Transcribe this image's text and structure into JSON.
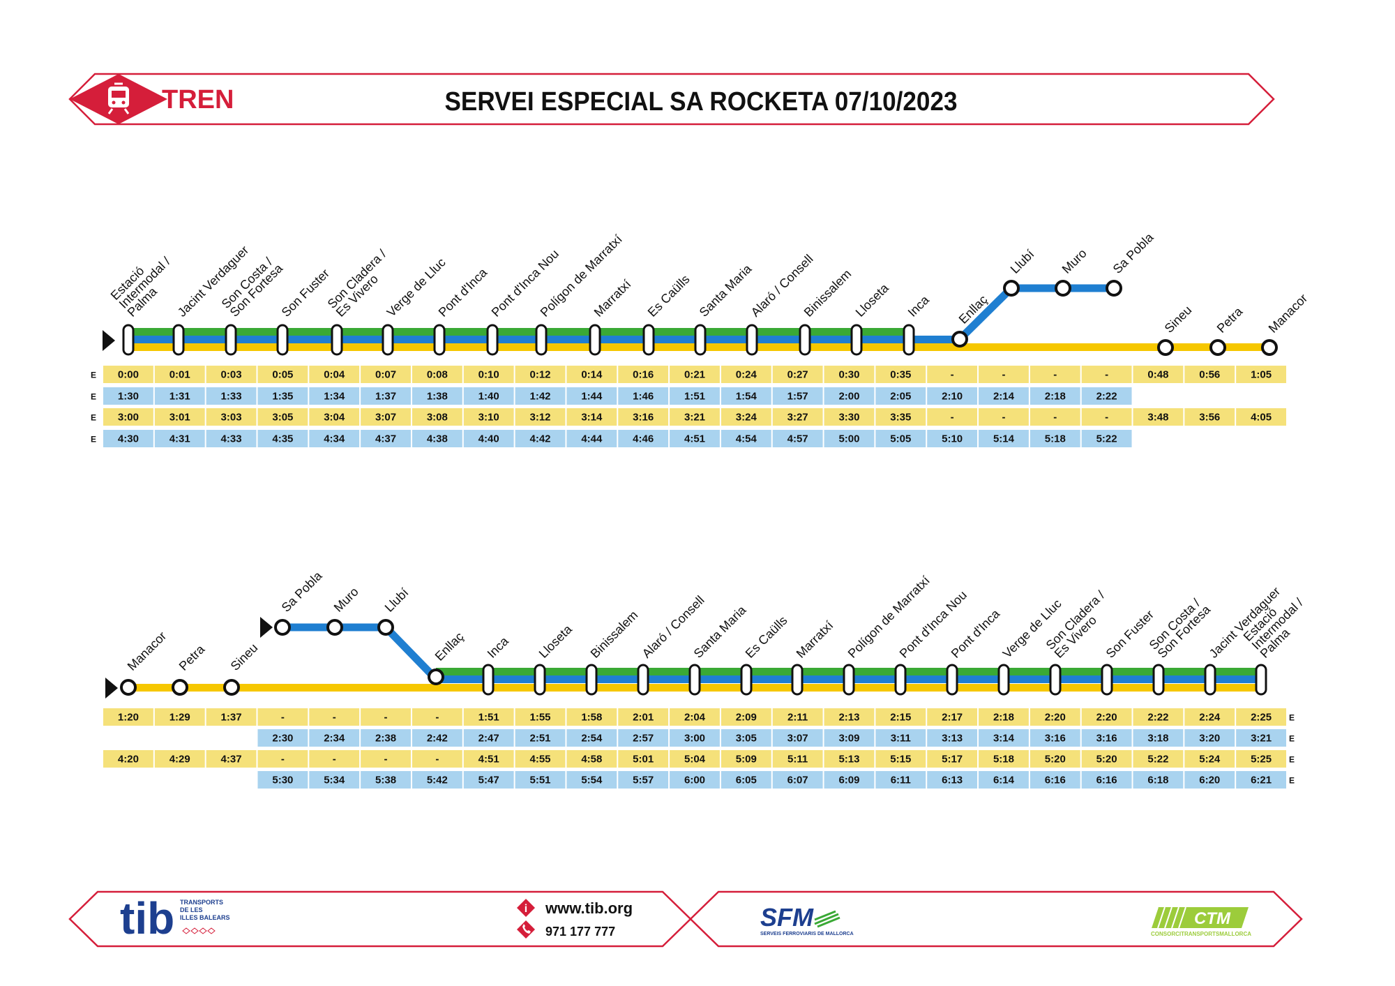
{
  "header": {
    "brand": "TREN",
    "title": "SERVEI ESPECIAL SA ROCKETA 07/10/2023"
  },
  "colors": {
    "accent_red": "#d51e3a",
    "yellow": "#f5e17a",
    "blue": "#a9d3ef",
    "line_green": "#3aa935",
    "line_blue": "#1f7fd1",
    "line_yellow": "#f6c700"
  },
  "service_marker": "E",
  "diagram1": {
    "stations": [
      "Estació\nIntermodal /\nPalma",
      "Jacint Verdaguer",
      "Son Costa /\nSon Fortesa",
      "Son Fuster",
      "Son Cladera /\nEs Vivero",
      "Verge de Lluc",
      "Pont d'Inca",
      "Pont d'Inca Nou",
      "Polígon de Marratxí",
      "Marratxí",
      "Es Caülls",
      "Santa Maria",
      "Alaró / Consell",
      "Binissalem",
      "Lloseta",
      "Inca",
      "Enllaç",
      "Llubí",
      "Muro",
      "Sa Pobla",
      "Sineu",
      "Petra",
      "Manacor"
    ],
    "rows": [
      {
        "fill": "yellow",
        "cells": [
          "0:00",
          "0:01",
          "0:03",
          "0:05",
          "0:04",
          "0:07",
          "0:08",
          "0:10",
          "0:12",
          "0:14",
          "0:16",
          "0:21",
          "0:24",
          "0:27",
          "0:30",
          "0:35",
          "-",
          "-",
          "-",
          "-",
          "0:48",
          "0:56",
          "1:05"
        ]
      },
      {
        "fill": "blue",
        "cells": [
          "1:30",
          "1:31",
          "1:33",
          "1:35",
          "1:34",
          "1:37",
          "1:38",
          "1:40",
          "1:42",
          "1:44",
          "1:46",
          "1:51",
          "1:54",
          "1:57",
          "2:00",
          "2:05",
          "2:10",
          "2:14",
          "2:18",
          "2:22"
        ]
      },
      {
        "fill": "yellow",
        "cells": [
          "3:00",
          "3:01",
          "3:03",
          "3:05",
          "3:04",
          "3:07",
          "3:08",
          "3:10",
          "3:12",
          "3:14",
          "3:16",
          "3:21",
          "3:24",
          "3:27",
          "3:30",
          "3:35",
          "-",
          "-",
          "-",
          "-",
          "3:48",
          "3:56",
          "4:05"
        ]
      },
      {
        "fill": "blue",
        "cells": [
          "4:30",
          "4:31",
          "4:33",
          "4:35",
          "4:34",
          "4:37",
          "4:38",
          "4:40",
          "4:42",
          "4:44",
          "4:46",
          "4:51",
          "4:54",
          "4:57",
          "5:00",
          "5:05",
          "5:10",
          "5:14",
          "5:18",
          "5:22"
        ]
      }
    ]
  },
  "diagram2": {
    "stations": [
      "Manacor",
      "Petra",
      "Sineu",
      "Sa Pobla",
      "Muro",
      "Llubí",
      "Enllaç",
      "Inca",
      "Lloseta",
      "Binissalem",
      "Alaró / Consell",
      "Santa Maria",
      "Es Caülls",
      "Marratxí",
      "Polígon de Marratxí",
      "Pont d'Inca Nou",
      "Pont d'Inca",
      "Verge de Lluc",
      "Son Cladera /\nEs Vivero",
      "Son Fuster",
      "Son Costa /\nSon Fortesa",
      "Jacint Verdaguer",
      "Estació\nIntermodal /\nPalma"
    ],
    "rows": [
      {
        "fill": "yellow",
        "start": 0,
        "cells": [
          "1:20",
          "1:29",
          "1:37",
          "-",
          "-",
          "-",
          "-",
          "1:51",
          "1:55",
          "1:58",
          "2:01",
          "2:04",
          "2:09",
          "2:11",
          "2:13",
          "2:15",
          "2:17",
          "2:18",
          "2:20",
          "2:20",
          "2:22",
          "2:24",
          "2:25"
        ]
      },
      {
        "fill": "blue",
        "start": 3,
        "cells": [
          "2:30",
          "2:34",
          "2:38",
          "2:42",
          "2:47",
          "2:51",
          "2:54",
          "2:57",
          "3:00",
          "3:05",
          "3:07",
          "3:09",
          "3:11",
          "3:13",
          "3:14",
          "3:16",
          "3:16",
          "3:18",
          "3:20",
          "3:21"
        ]
      },
      {
        "fill": "yellow",
        "start": 0,
        "cells": [
          "4:20",
          "4:29",
          "4:37",
          "-",
          "-",
          "-",
          "-",
          "4:51",
          "4:55",
          "4:58",
          "5:01",
          "5:04",
          "5:09",
          "5:11",
          "5:13",
          "5:15",
          "5:17",
          "5:18",
          "5:20",
          "5:20",
          "5:22",
          "5:24",
          "5:25"
        ]
      },
      {
        "fill": "blue",
        "start": 3,
        "cells": [
          "5:30",
          "5:34",
          "5:38",
          "5:42",
          "5:47",
          "5:51",
          "5:54",
          "5:57",
          "6:00",
          "6:05",
          "6:07",
          "6:09",
          "6:11",
          "6:13",
          "6:14",
          "6:16",
          "6:16",
          "6:18",
          "6:20",
          "6:21"
        ]
      }
    ]
  },
  "footer": {
    "tib_logo": "tib",
    "tib_sub": [
      "TRANSPORTS",
      "DE LES",
      "ILLES BALEARS"
    ],
    "website": "www.tib.org",
    "phone": "971 177 777",
    "sfm_logo": "SFM",
    "sfm_sub": "SERVEIS FERROVIARIS DE MALLORCA",
    "ctm_logo": "CTM",
    "ctm_sub": "CONSORCITRANSPORTSMALLORCA",
    "info_icon": "info-icon",
    "phone_icon": "phone-icon",
    "train_icon": "train-icon"
  }
}
